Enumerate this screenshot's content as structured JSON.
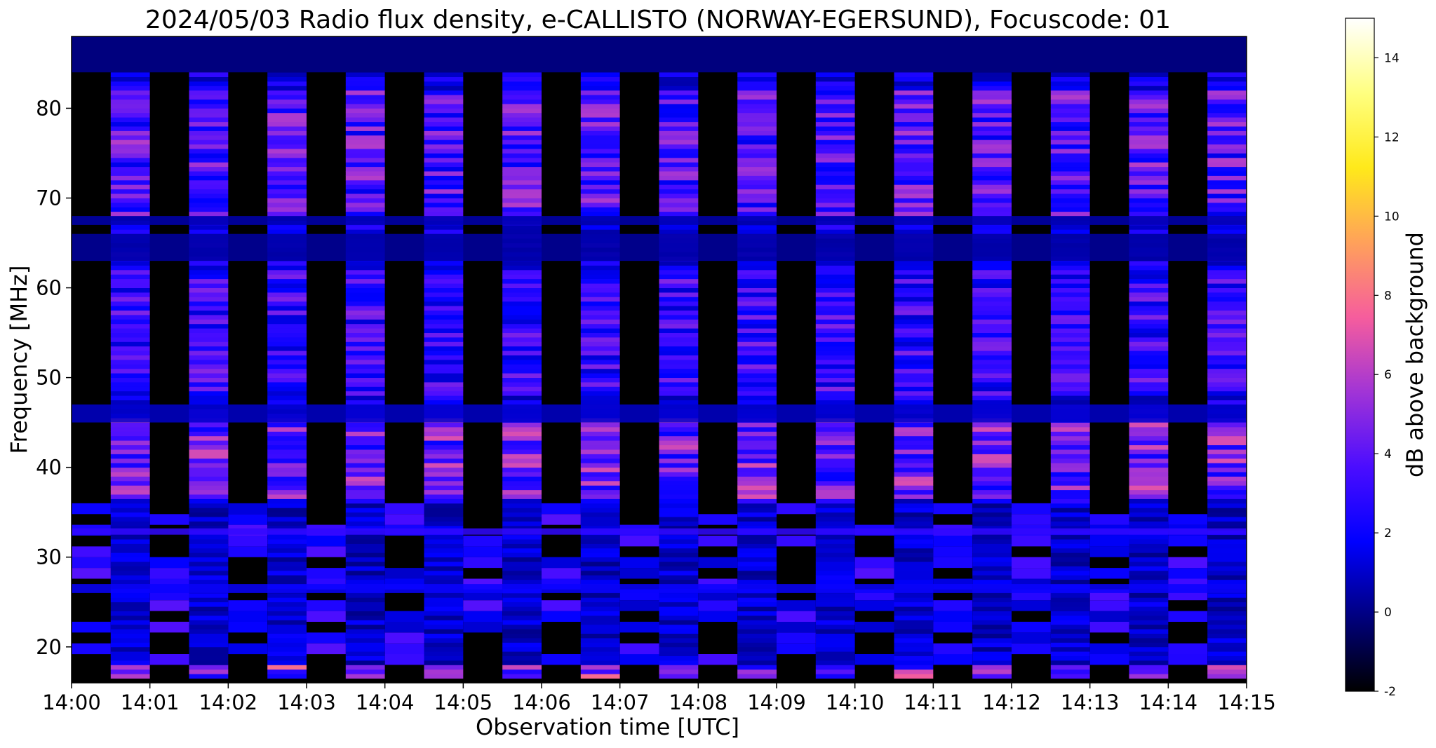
{
  "chart_data": {
    "type": "heatmap",
    "title": "2024/05/03  Radio flux density, e-CALLISTO (NORWAY-EGERSUND), Focuscode: 01",
    "xlabel": "Observation time [UTC]",
    "ylabel": "Frequency [MHz]",
    "colorbar_label": "dB above background",
    "x_ticks": [
      "14:00",
      "14:01",
      "14:02",
      "14:03",
      "14:04",
      "14:05",
      "14:06",
      "14:07",
      "14:08",
      "14:09",
      "14:10",
      "14:11",
      "14:12",
      "14:13",
      "14:14",
      "14:15"
    ],
    "xlim_minutes": [
      0,
      15
    ],
    "y_ticks": [
      20,
      30,
      40,
      50,
      60,
      70,
      80
    ],
    "ylim": [
      16,
      88
    ],
    "colorbar_ticks": [
      -2,
      0,
      2,
      4,
      6,
      8,
      10,
      12,
      14
    ],
    "colorbar_range": [
      -2,
      15
    ],
    "colormap": "gnuplot2",
    "colormap_stops": [
      "#000000",
      "#00007f",
      "#0000ff",
      "#4b0dff",
      "#a134d6",
      "#f65d9d",
      "#ffa15a",
      "#ffe91a",
      "#ffff80",
      "#ffffff"
    ],
    "sweep_period_minutes": 1.0,
    "sweep_offset_minutes": 0.5,
    "horizontal_bands_mhz": [
      {
        "lo": 84,
        "hi": 88,
        "db": 0.2
      },
      {
        "lo": 67,
        "hi": 68,
        "db": 0.6
      },
      {
        "lo": 63,
        "hi": 66,
        "db": 0.4
      },
      {
        "lo": 45,
        "hi": 47,
        "db": 1.0
      },
      {
        "lo": 32.5,
        "hi": 33.2,
        "db": 3.0
      },
      {
        "lo": 26,
        "hi": 27,
        "db": 2.0
      }
    ],
    "emission_features_mhz": [
      {
        "lo": 68,
        "hi": 82,
        "db": 7
      },
      {
        "lo": 48,
        "hi": 62,
        "db": 6
      },
      {
        "lo": 36.5,
        "hi": 45.5,
        "db": 8
      },
      {
        "lo": 18,
        "hi": 36,
        "db": 3
      },
      {
        "lo": 16.5,
        "hi": 18,
        "db": 9
      }
    ]
  }
}
